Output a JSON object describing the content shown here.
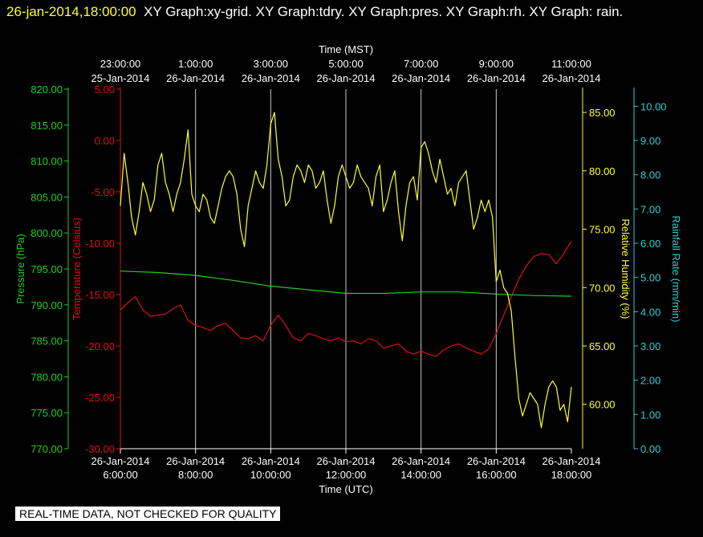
{
  "header": {
    "timestamp": "26-jan-2014,18:00:00",
    "title": "XY Graph:xy-grid.  XY Graph:tdry.  XY Graph:pres.  XY Graph:rh.  XY Graph: rain."
  },
  "footer_note": "REAL-TIME DATA, NOT CHECKED FOR QUALITY",
  "chart_data": {
    "type": "line",
    "top_axis": {
      "label": "Time (MST)",
      "ticks": [
        {
          "time": "23:00:00",
          "date": "25-Jan-2014"
        },
        {
          "time": "1:00:00",
          "date": "26-Jan-2014"
        },
        {
          "time": "3:00:00",
          "date": "26-Jan-2014"
        },
        {
          "time": "5:00:00",
          "date": "26-Jan-2014"
        },
        {
          "time": "7:00:00",
          "date": "26-Jan-2014"
        },
        {
          "time": "9:00:00",
          "date": "26-Jan-2014"
        },
        {
          "time": "11:00:00",
          "date": "26-Jan-2014"
        }
      ]
    },
    "bottom_axis": {
      "label": "Time (UTC)",
      "xlim": [
        6.0,
        18.0
      ],
      "tick_values": [
        6,
        8,
        10,
        12,
        14,
        16,
        18
      ],
      "ticks": [
        {
          "date": "26-Jan-2014",
          "time": "6:00:00"
        },
        {
          "date": "26-Jan-2014",
          "time": "8:00:00"
        },
        {
          "date": "26-Jan-2014",
          "time": "10:00:00"
        },
        {
          "date": "26-Jan-2014",
          "time": "12:00:00"
        },
        {
          "date": "26-Jan-2014",
          "time": "14:00:00"
        },
        {
          "date": "26-Jan-2014",
          "time": "16:00:00"
        },
        {
          "date": "26-Jan-2014",
          "time": "18:00:00"
        }
      ]
    },
    "grid": "vertical",
    "axes": {
      "pressure": {
        "label": "Pressure (hPa)",
        "color": "#22cc22",
        "ylim": [
          770,
          820
        ],
        "ticks": [
          "770.00",
          "775.00",
          "780.00",
          "785.00",
          "790.00",
          "795.00",
          "800.00",
          "805.00",
          "810.00",
          "815.00",
          "820.00"
        ]
      },
      "temperature": {
        "label": "Temperature (Celsius)",
        "color": "#dd1111",
        "ylim": [
          -30,
          5
        ],
        "ticks": [
          "-30.00",
          "-25.00",
          "-20.00",
          "-15.00",
          "-10.00",
          "-5.00",
          "0.00",
          "5.00"
        ]
      },
      "humidity": {
        "label": "Relative Humidity (%)",
        "color": "#ffff33",
        "ylim": [
          56.2,
          87.0
        ],
        "ticks": [
          "60.00",
          "65.00",
          "70.00",
          "75.00",
          "80.00",
          "85.00"
        ]
      },
      "rain": {
        "label": "Rainfall Rate (mm/min)",
        "color": "#33cccc",
        "ylim": [
          0,
          10.5
        ],
        "ticks": [
          "0.00",
          "1.00",
          "2.00",
          "3.00",
          "4.00",
          "5.00",
          "6.00",
          "7.00",
          "8.00",
          "9.00",
          "10.00"
        ]
      }
    },
    "series": [
      {
        "name": "tdry",
        "axis": "temperature",
        "color": "#dd1111",
        "x": [
          6.0,
          6.2,
          6.4,
          6.6,
          6.8,
          7.0,
          7.2,
          7.4,
          7.6,
          7.8,
          8.0,
          8.2,
          8.4,
          8.6,
          8.8,
          9.0,
          9.2,
          9.4,
          9.6,
          9.8,
          10.0,
          10.2,
          10.4,
          10.6,
          10.8,
          11.0,
          11.2,
          11.4,
          11.6,
          11.8,
          12.0,
          12.2,
          12.4,
          12.6,
          12.8,
          13.0,
          13.2,
          13.4,
          13.6,
          13.8,
          14.0,
          14.2,
          14.4,
          14.6,
          14.8,
          15.0,
          15.2,
          15.4,
          15.6,
          15.8,
          16.0,
          16.2,
          16.4,
          16.6,
          16.8,
          17.0,
          17.2,
          17.4,
          17.6,
          17.8,
          18.0
        ],
        "y": [
          -16.5,
          -15.8,
          -15.2,
          -16.5,
          -17.1,
          -17.0,
          -16.9,
          -16.4,
          -16.0,
          -17.5,
          -18.0,
          -18.2,
          -18.5,
          -18.0,
          -17.8,
          -18.5,
          -19.2,
          -19.3,
          -19.0,
          -19.5,
          -18.0,
          -17.0,
          -18.0,
          -19.2,
          -19.5,
          -18.8,
          -19.0,
          -19.3,
          -19.5,
          -19.2,
          -19.6,
          -19.5,
          -19.8,
          -19.3,
          -19.5,
          -20.2,
          -20.0,
          -19.8,
          -20.5,
          -20.8,
          -20.5,
          -20.8,
          -21.0,
          -20.4,
          -20.0,
          -19.8,
          -20.2,
          -20.5,
          -20.8,
          -20.3,
          -18.8,
          -17.0,
          -15.2,
          -13.5,
          -12.2,
          -11.3,
          -11.0,
          -11.1,
          -12.0,
          -11.0,
          -9.8
        ]
      },
      {
        "name": "pres",
        "axis": "pressure",
        "color": "#22cc22",
        "x": [
          6.0,
          7.0,
          8.0,
          9.0,
          10.0,
          11.0,
          12.0,
          13.0,
          14.0,
          15.0,
          16.0,
          17.0,
          18.0
        ],
        "y": [
          794.7,
          794.5,
          794.1,
          793.4,
          792.6,
          792.1,
          791.6,
          791.6,
          791.8,
          791.8,
          791.5,
          791.3,
          791.2
        ]
      },
      {
        "name": "rh",
        "axis": "humidity",
        "color": "#ffff33",
        "x": [
          6.0,
          6.1,
          6.2,
          6.3,
          6.4,
          6.5,
          6.6,
          6.7,
          6.8,
          6.9,
          7.0,
          7.1,
          7.2,
          7.3,
          7.4,
          7.5,
          7.6,
          7.7,
          7.8,
          7.9,
          8.0,
          8.1,
          8.2,
          8.3,
          8.4,
          8.5,
          8.6,
          8.7,
          8.8,
          8.9,
          9.0,
          9.1,
          9.2,
          9.3,
          9.4,
          9.5,
          9.6,
          9.7,
          9.8,
          9.9,
          10.0,
          10.1,
          10.2,
          10.3,
          10.4,
          10.5,
          10.6,
          10.7,
          10.8,
          10.9,
          11.0,
          11.1,
          11.2,
          11.3,
          11.4,
          11.5,
          11.6,
          11.7,
          11.8,
          11.9,
          12.0,
          12.1,
          12.2,
          12.3,
          12.4,
          12.5,
          12.6,
          12.7,
          12.8,
          12.9,
          13.0,
          13.1,
          13.2,
          13.3,
          13.4,
          13.5,
          13.6,
          13.7,
          13.8,
          13.9,
          14.0,
          14.1,
          14.2,
          14.3,
          14.4,
          14.5,
          14.6,
          14.7,
          14.8,
          14.9,
          15.0,
          15.1,
          15.2,
          15.3,
          15.4,
          15.5,
          15.6,
          15.7,
          15.8,
          15.9,
          16.0,
          16.1,
          16.2,
          16.3,
          16.4,
          16.5,
          16.6,
          16.7,
          16.8,
          16.9,
          17.0,
          17.1,
          17.2,
          17.3,
          17.4,
          17.5,
          17.6,
          17.7,
          17.8,
          17.9,
          18.0
        ],
        "y": [
          77.0,
          81.5,
          79.0,
          76.0,
          74.5,
          76.5,
          79.0,
          78.0,
          76.5,
          77.5,
          80.5,
          81.5,
          79.0,
          78.0,
          76.5,
          78.0,
          79.0,
          81.0,
          83.5,
          78.0,
          77.0,
          76.5,
          78.0,
          77.5,
          76.0,
          75.5,
          77.0,
          78.5,
          79.5,
          80.0,
          79.5,
          78.0,
          75.0,
          73.5,
          77.0,
          78.5,
          80.0,
          79.0,
          78.5,
          80.5,
          84.0,
          85.0,
          81.0,
          79.5,
          77.0,
          77.5,
          79.5,
          80.5,
          80.0,
          79.0,
          80.5,
          80.0,
          78.5,
          79.0,
          80.0,
          77.5,
          75.5,
          77.0,
          79.5,
          80.5,
          79.5,
          78.5,
          79.0,
          80.5,
          79.5,
          79.0,
          78.5,
          77.0,
          79.5,
          80.5,
          76.5,
          77.5,
          79.0,
          80.0,
          76.5,
          74.0,
          77.0,
          79.0,
          79.5,
          77.5,
          82.0,
          82.5,
          81.5,
          80.0,
          79.0,
          81.0,
          79.5,
          78.0,
          78.5,
          77.0,
          79.0,
          79.5,
          80.0,
          77.5,
          75.0,
          76.0,
          77.5,
          76.5,
          77.5,
          76.0,
          70.5,
          71.5,
          70.0,
          69.5,
          68.0,
          64.0,
          60.5,
          59.0,
          60.0,
          61.0,
          60.5,
          60.0,
          58.0,
          60.0,
          61.5,
          62.0,
          61.5,
          59.5,
          60.0,
          58.5,
          61.5
        ]
      },
      {
        "name": "rain",
        "axis": "rain",
        "color": "#33cccc",
        "x": [],
        "y": []
      }
    ]
  }
}
